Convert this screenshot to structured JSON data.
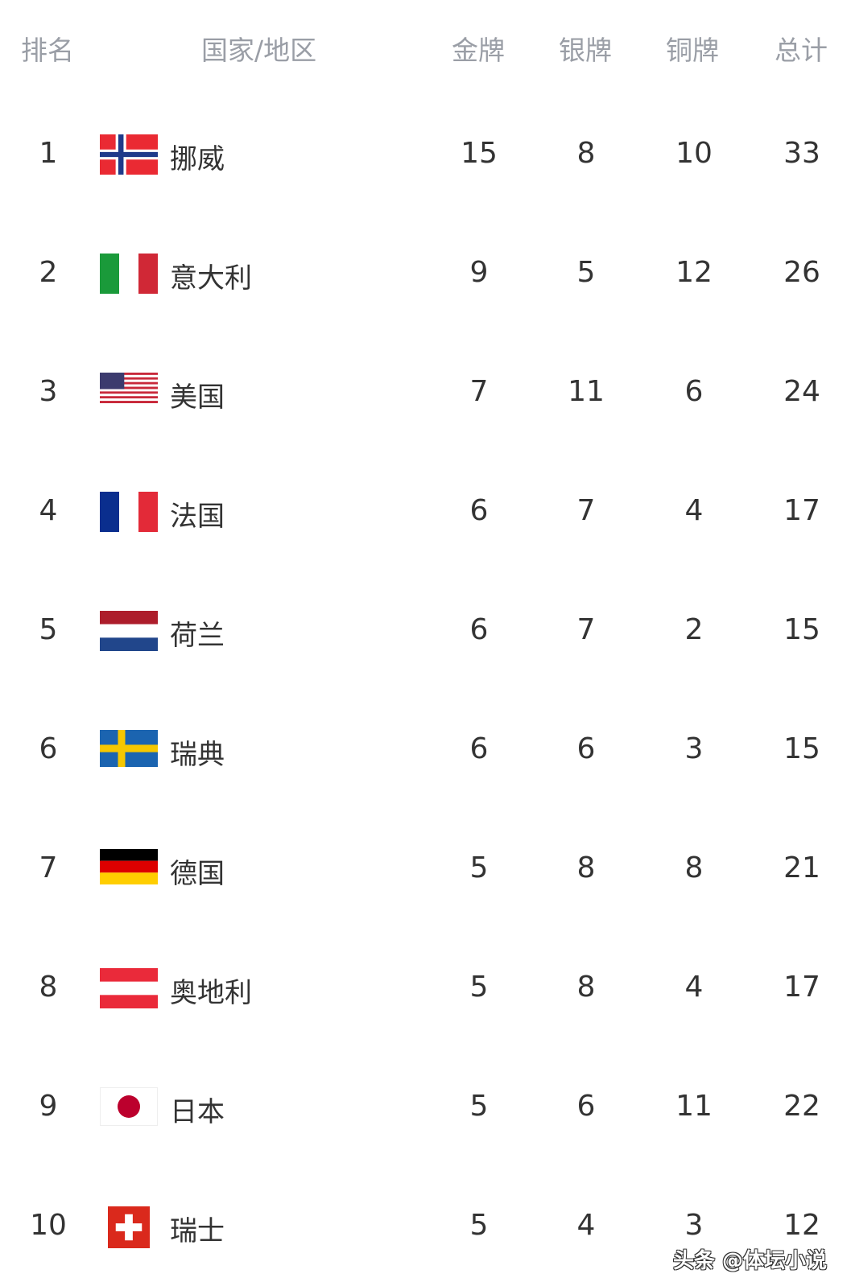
{
  "header": {
    "rank": "排名",
    "country": "国家/地区",
    "gold": "金牌",
    "silver": "银牌",
    "bronze": "铜牌",
    "total": "总计"
  },
  "rows": [
    {
      "rank": "1",
      "country": "挪威",
      "flag": "norway-flag",
      "gold": "15",
      "silver": "8",
      "bronze": "10",
      "total": "33"
    },
    {
      "rank": "2",
      "country": "意大利",
      "flag": "italy-flag",
      "gold": "9",
      "silver": "5",
      "bronze": "12",
      "total": "26"
    },
    {
      "rank": "3",
      "country": "美国",
      "flag": "usa-flag",
      "gold": "7",
      "silver": "11",
      "bronze": "6",
      "total": "24"
    },
    {
      "rank": "4",
      "country": "法国",
      "flag": "france-flag",
      "gold": "6",
      "silver": "7",
      "bronze": "4",
      "total": "17"
    },
    {
      "rank": "5",
      "country": "荷兰",
      "flag": "netherlands-flag",
      "gold": "6",
      "silver": "7",
      "bronze": "2",
      "total": "15"
    },
    {
      "rank": "6",
      "country": "瑞典",
      "flag": "sweden-flag",
      "gold": "6",
      "silver": "6",
      "bronze": "3",
      "total": "15"
    },
    {
      "rank": "7",
      "country": "德国",
      "flag": "germany-flag",
      "gold": "5",
      "silver": "8",
      "bronze": "8",
      "total": "21"
    },
    {
      "rank": "8",
      "country": "奥地利",
      "flag": "austria-flag",
      "gold": "5",
      "silver": "8",
      "bronze": "4",
      "total": "17"
    },
    {
      "rank": "9",
      "country": "日本",
      "flag": "japan-flag",
      "gold": "5",
      "silver": "6",
      "bronze": "11",
      "total": "22"
    },
    {
      "rank": "10",
      "country": "瑞士",
      "flag": "switzerland-flag",
      "gold": "5",
      "silver": "4",
      "bronze": "3",
      "total": "12"
    }
  ],
  "watermark": "头条 @体坛小说"
}
